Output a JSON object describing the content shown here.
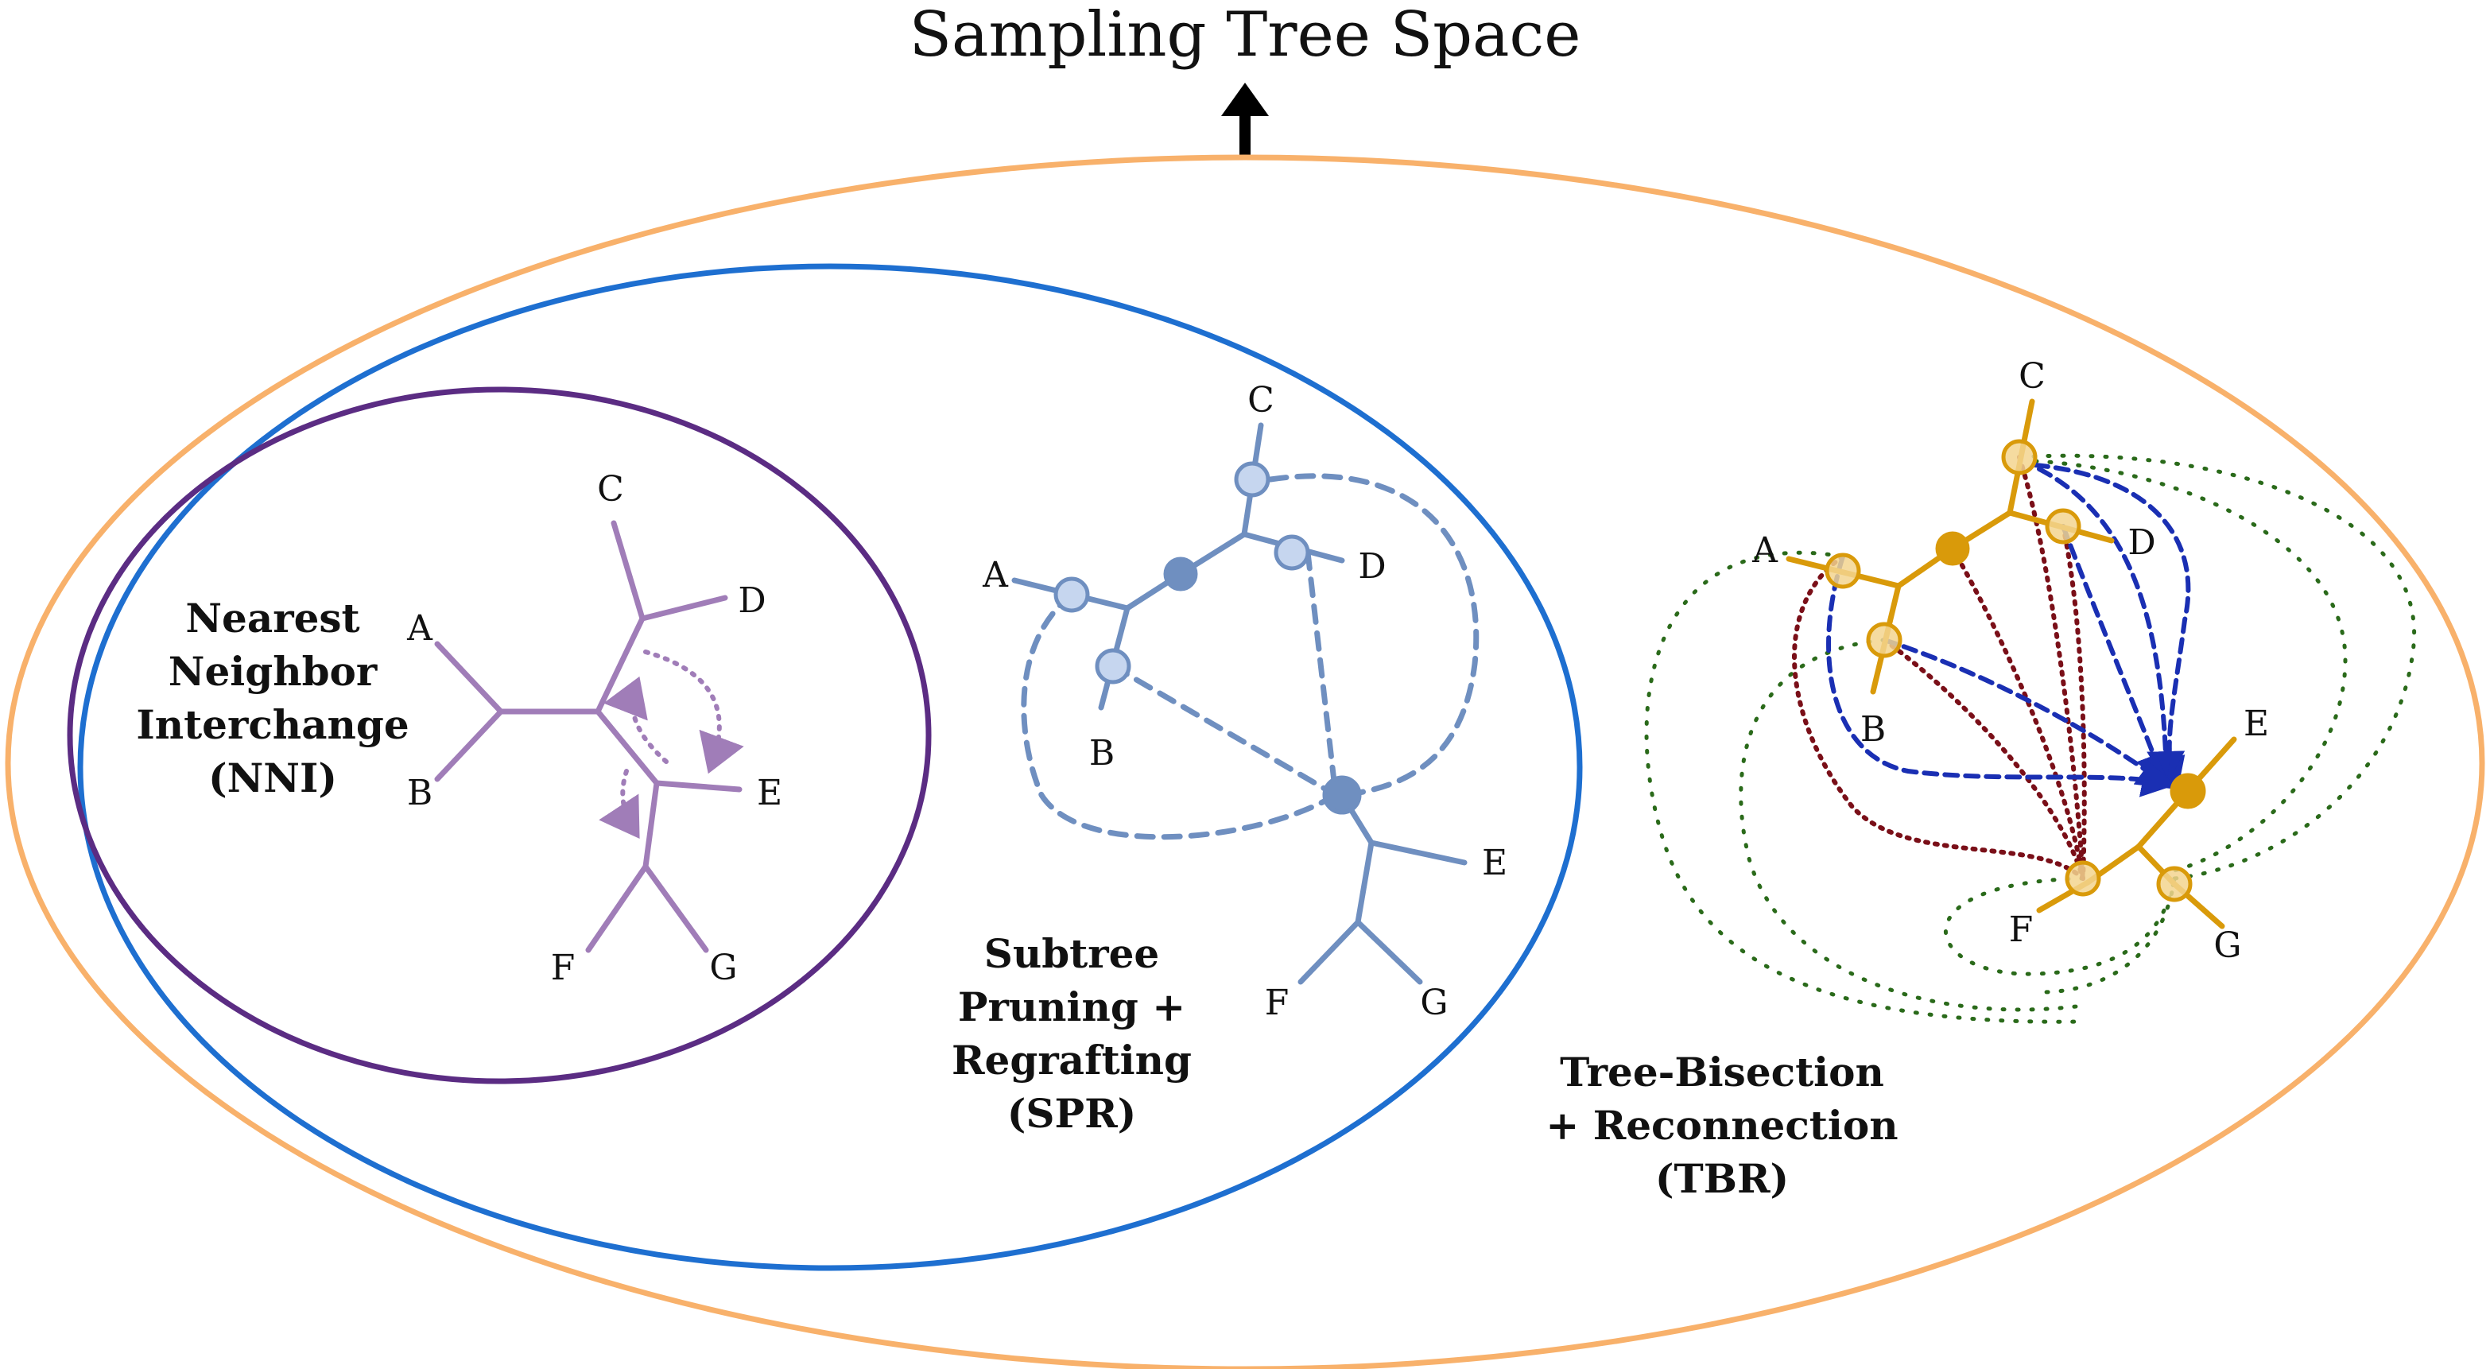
{
  "title": "Sampling Tree Space",
  "colors": {
    "outer_ellipse": "#f8b16b",
    "middle_ellipse": "#1e6fd0",
    "inner_ellipse": "#5b2c83",
    "nni_tree": "#a07db8",
    "spr_tree": "#6f8fc0",
    "spr_circle_fill": "#c6d6ef",
    "tbr_tree": "#d99a0a",
    "tbr_circle_fill": "#f3d58f",
    "tbr_blue_dash": "#1a2fb3",
    "tbr_red_dot": "#7a0f18",
    "tbr_green_dot": "#2a6a1a"
  },
  "nni": {
    "label_lines": [
      "Nearest",
      "Neighbor",
      "Interchange",
      "(NNI)"
    ],
    "leaves": [
      "A",
      "B",
      "C",
      "D",
      "E",
      "F",
      "G"
    ]
  },
  "spr": {
    "label_lines": [
      "Subtree",
      "Pruning +",
      "Regrafting",
      "(SPR)"
    ],
    "leaves": [
      "A",
      "B",
      "C",
      "D",
      "E",
      "F",
      "G"
    ]
  },
  "tbr": {
    "label_lines": [
      "Tree-Bisection",
      "+ Reconnection",
      "(TBR)"
    ],
    "leaves": [
      "A",
      "B",
      "C",
      "D",
      "E",
      "F",
      "G"
    ]
  }
}
